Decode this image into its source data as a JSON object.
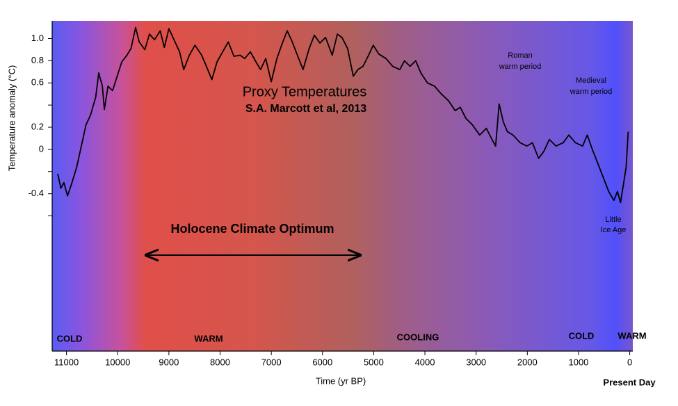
{
  "chart_data": {
    "type": "line",
    "title": "Proxy Temperatures",
    "subtitle": "S.A. Marcott et al, 2013",
    "x_label": "Time (yr BP)",
    "y_label": "Temperature anomaly (°C)",
    "present_label": "Present Day",
    "optimum_label": "Holocene Climate Optimum",
    "band_labels": [
      "COLD",
      "WARM",
      "COOLING",
      "COLD",
      "WARM"
    ],
    "annotations": [
      [
        "Roman",
        "warm period"
      ],
      [
        "Medieval",
        "warm period"
      ],
      [
        "Little",
        "Ice Age"
      ]
    ],
    "color": "#000000",
    "x": [
      11170,
      11110,
      11050,
      10980,
      10900,
      10800,
      10710,
      10620,
      10530,
      10430,
      10370,
      10300,
      10260,
      10190,
      10100,
      10010,
      9920,
      9820,
      9740,
      9650,
      9580,
      9470,
      9380,
      9280,
      9170,
      9090,
      9000,
      8900,
      8790,
      8710,
      8600,
      8490,
      8360,
      8260,
      8160,
      8060,
      7950,
      7840,
      7730,
      7610,
      7520,
      7410,
      7300,
      7210,
      7110,
      7000,
      6890,
      6800,
      6690,
      6590,
      6490,
      6380,
      6260,
      6160,
      6050,
      5940,
      5810,
      5710,
      5620,
      5510,
      5400,
      5310,
      5210,
      5100,
      5010,
      4900,
      4760,
      4630,
      4490,
      4400,
      4290,
      4180,
      4080,
      3950,
      3810,
      3680,
      3540,
      3410,
      3310,
      3200,
      3070,
      2930,
      2800,
      2690,
      2620,
      2550,
      2470,
      2390,
      2280,
      2140,
      2010,
      1900,
      1780,
      1680,
      1570,
      1440,
      1300,
      1190,
      1060,
      920,
      830,
      730,
      620,
      520,
      410,
      310,
      240,
      180,
      120,
      70,
      30
    ],
    "values": [
      -0.22,
      -0.35,
      -0.3,
      -0.42,
      -0.31,
      -0.16,
      0.03,
      0.22,
      0.31,
      0.47,
      0.69,
      0.57,
      0.36,
      0.57,
      0.53,
      0.66,
      0.79,
      0.85,
      0.91,
      1.1,
      0.97,
      0.9,
      1.04,
      0.99,
      1.07,
      0.92,
      1.09,
      0.99,
      0.88,
      0.72,
      0.85,
      0.94,
      0.85,
      0.74,
      0.63,
      0.79,
      0.88,
      0.97,
      0.84,
      0.85,
      0.82,
      0.88,
      0.79,
      0.72,
      0.82,
      0.61,
      0.82,
      0.94,
      1.07,
      0.97,
      0.85,
      0.72,
      0.91,
      1.03,
      0.96,
      1.01,
      0.85,
      1.04,
      1.01,
      0.91,
      0.66,
      0.72,
      0.75,
      0.85,
      0.94,
      0.86,
      0.82,
      0.75,
      0.72,
      0.8,
      0.75,
      0.8,
      0.69,
      0.6,
      0.57,
      0.5,
      0.44,
      0.35,
      0.38,
      0.28,
      0.22,
      0.13,
      0.19,
      0.09,
      0.03,
      0.41,
      0.25,
      0.16,
      0.13,
      0.06,
      0.03,
      0.06,
      -0.08,
      -0.02,
      0.09,
      0.03,
      0.06,
      0.13,
      0.06,
      0.03,
      0.13,
      0,
      -0.13,
      -0.25,
      -0.38,
      -0.46,
      -0.38,
      -0.48,
      -0.31,
      -0.16,
      0.16
    ],
    "xlim": [
      11280,
      -60
    ],
    "ylim": [
      -1.82,
      1.16
    ],
    "xticks": [
      11000,
      10000,
      9000,
      8000,
      7000,
      6000,
      5000,
      4000,
      3000,
      2000,
      1000,
      0
    ],
    "yticks": [
      {
        "value": 1,
        "label": "1.0"
      },
      0.8,
      0.6,
      0.2,
      0,
      -0.4
    ],
    "yminor_ticks": [
      0.4,
      -0.2,
      -0.6
    ]
  }
}
